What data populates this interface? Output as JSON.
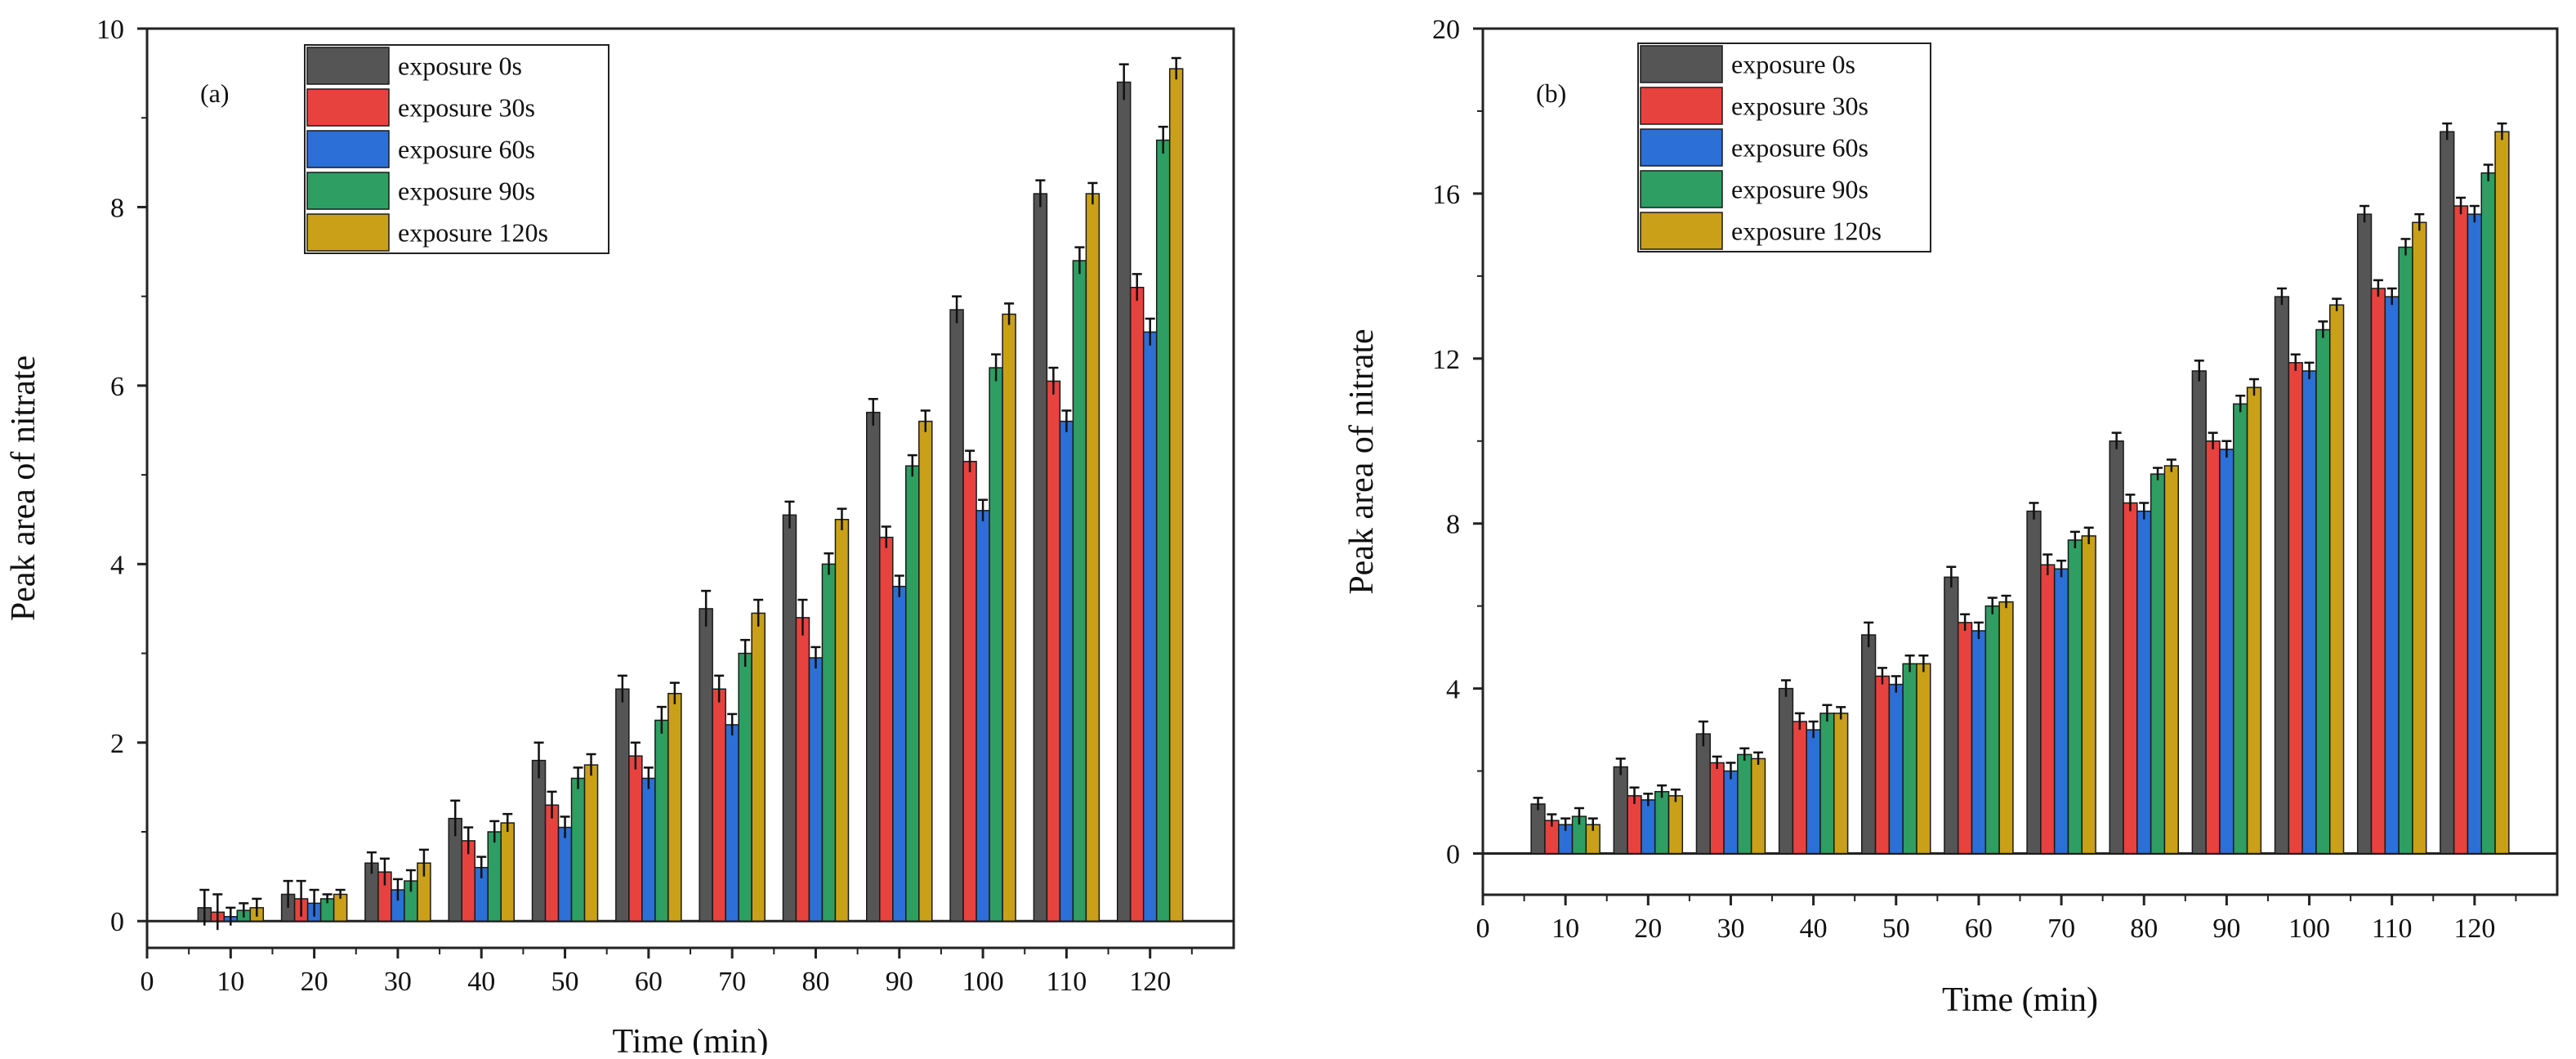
{
  "chart_data": [
    {
      "type": "bar",
      "panel_label": "(a)",
      "xlabel": "Time (min)",
      "ylabel": "Peak area of nitrate",
      "ylim": [
        -0.3,
        10
      ],
      "xlim": [
        0,
        130
      ],
      "x_ticks": [
        "0",
        "10",
        "20",
        "30",
        "40",
        "50",
        "60",
        "70",
        "80",
        "90",
        "100",
        "110",
        "120"
      ],
      "y_ticks": [
        "0",
        "2",
        "4",
        "6",
        "8",
        "10"
      ],
      "legend_position": "top-left",
      "categories": [
        10,
        20,
        30,
        40,
        50,
        60,
        70,
        80,
        90,
        100,
        110,
        120
      ],
      "series": [
        {
          "name": "exposure 0s",
          "color": "#555555",
          "values": [
            0.15,
            0.3,
            0.65,
            1.15,
            1.8,
            2.6,
            3.5,
            4.55,
            5.7,
            6.85,
            8.15,
            9.4
          ],
          "errors": [
            0.2,
            0.15,
            0.12,
            0.2,
            0.2,
            0.15,
            0.2,
            0.15,
            0.15,
            0.15,
            0.15,
            0.2
          ]
        },
        {
          "name": "exposure 30s",
          "color": "#e8423f",
          "values": [
            0.1,
            0.25,
            0.55,
            0.9,
            1.3,
            1.85,
            2.6,
            3.4,
            4.3,
            5.15,
            6.05,
            7.1
          ],
          "errors": [
            0.2,
            0.2,
            0.15,
            0.15,
            0.15,
            0.15,
            0.15,
            0.2,
            0.12,
            0.12,
            0.15,
            0.15
          ]
        },
        {
          "name": "exposure 60s",
          "color": "#2c6fd6",
          "values": [
            0.05,
            0.2,
            0.35,
            0.6,
            1.05,
            1.6,
            2.2,
            2.95,
            3.75,
            4.6,
            5.6,
            6.6
          ],
          "errors": [
            0.1,
            0.15,
            0.12,
            0.12,
            0.12,
            0.12,
            0.12,
            0.12,
            0.12,
            0.12,
            0.12,
            0.15
          ]
        },
        {
          "name": "exposure 90s",
          "color": "#2e9e62",
          "values": [
            0.12,
            0.25,
            0.45,
            1.0,
            1.6,
            2.25,
            3.0,
            4.0,
            5.1,
            6.2,
            7.4,
            8.75
          ],
          "errors": [
            0.08,
            0.05,
            0.12,
            0.12,
            0.12,
            0.15,
            0.15,
            0.12,
            0.12,
            0.15,
            0.15,
            0.15
          ]
        },
        {
          "name": "exposure 120s",
          "color": "#c9a018",
          "values": [
            0.15,
            0.3,
            0.65,
            1.1,
            1.75,
            2.55,
            3.45,
            4.5,
            5.6,
            6.8,
            8.15,
            9.55
          ],
          "errors": [
            0.1,
            0.05,
            0.15,
            0.1,
            0.12,
            0.12,
            0.15,
            0.12,
            0.12,
            0.12,
            0.12,
            0.12
          ]
        }
      ]
    },
    {
      "type": "bar",
      "panel_label": "(b)",
      "xlabel": "Time (min)",
      "ylabel": "Peak area of nitrate",
      "ylim": [
        -1,
        20
      ],
      "xlim": [
        0,
        130
      ],
      "x_ticks": [
        "0",
        "10",
        "20",
        "30",
        "40",
        "50",
        "60",
        "70",
        "80",
        "90",
        "100",
        "110",
        "120"
      ],
      "y_ticks": [
        "0",
        "4",
        "8",
        "12",
        "16",
        "20"
      ],
      "legend_position": "top-left",
      "categories": [
        10,
        20,
        30,
        40,
        50,
        60,
        70,
        80,
        90,
        100,
        110,
        120
      ],
      "series": [
        {
          "name": "exposure 0s",
          "color": "#555555",
          "values": [
            1.2,
            2.1,
            2.9,
            4.0,
            5.3,
            6.7,
            8.3,
            10.0,
            11.7,
            13.5,
            15.5,
            17.5
          ],
          "errors": [
            0.15,
            0.2,
            0.3,
            0.2,
            0.3,
            0.25,
            0.2,
            0.2,
            0.25,
            0.2,
            0.2,
            0.2
          ]
        },
        {
          "name": "exposure 30s",
          "color": "#e8423f",
          "values": [
            0.8,
            1.4,
            2.2,
            3.2,
            4.3,
            5.6,
            7.0,
            8.5,
            10.0,
            11.9,
            13.7,
            15.7
          ],
          "errors": [
            0.15,
            0.2,
            0.15,
            0.2,
            0.2,
            0.2,
            0.25,
            0.2,
            0.2,
            0.2,
            0.2,
            0.2
          ]
        },
        {
          "name": "exposure 60s",
          "color": "#2c6fd6",
          "values": [
            0.7,
            1.3,
            2.0,
            3.0,
            4.1,
            5.4,
            6.9,
            8.3,
            9.8,
            11.7,
            13.5,
            15.5
          ],
          "errors": [
            0.15,
            0.15,
            0.2,
            0.2,
            0.2,
            0.2,
            0.2,
            0.2,
            0.2,
            0.2,
            0.2,
            0.2
          ]
        },
        {
          "name": "exposure 90s",
          "color": "#2e9e62",
          "values": [
            0.9,
            1.5,
            2.4,
            3.4,
            4.6,
            6.0,
            7.6,
            9.2,
            10.9,
            12.7,
            14.7,
            16.5
          ],
          "errors": [
            0.2,
            0.15,
            0.15,
            0.2,
            0.2,
            0.2,
            0.2,
            0.15,
            0.2,
            0.2,
            0.2,
            0.2
          ]
        },
        {
          "name": "exposure 120s",
          "color": "#c9a018",
          "values": [
            0.7,
            1.4,
            2.3,
            3.4,
            4.6,
            6.1,
            7.7,
            9.4,
            11.3,
            13.3,
            15.3,
            17.5
          ],
          "errors": [
            0.15,
            0.15,
            0.15,
            0.15,
            0.2,
            0.15,
            0.2,
            0.15,
            0.2,
            0.15,
            0.2,
            0.2
          ]
        }
      ]
    }
  ]
}
